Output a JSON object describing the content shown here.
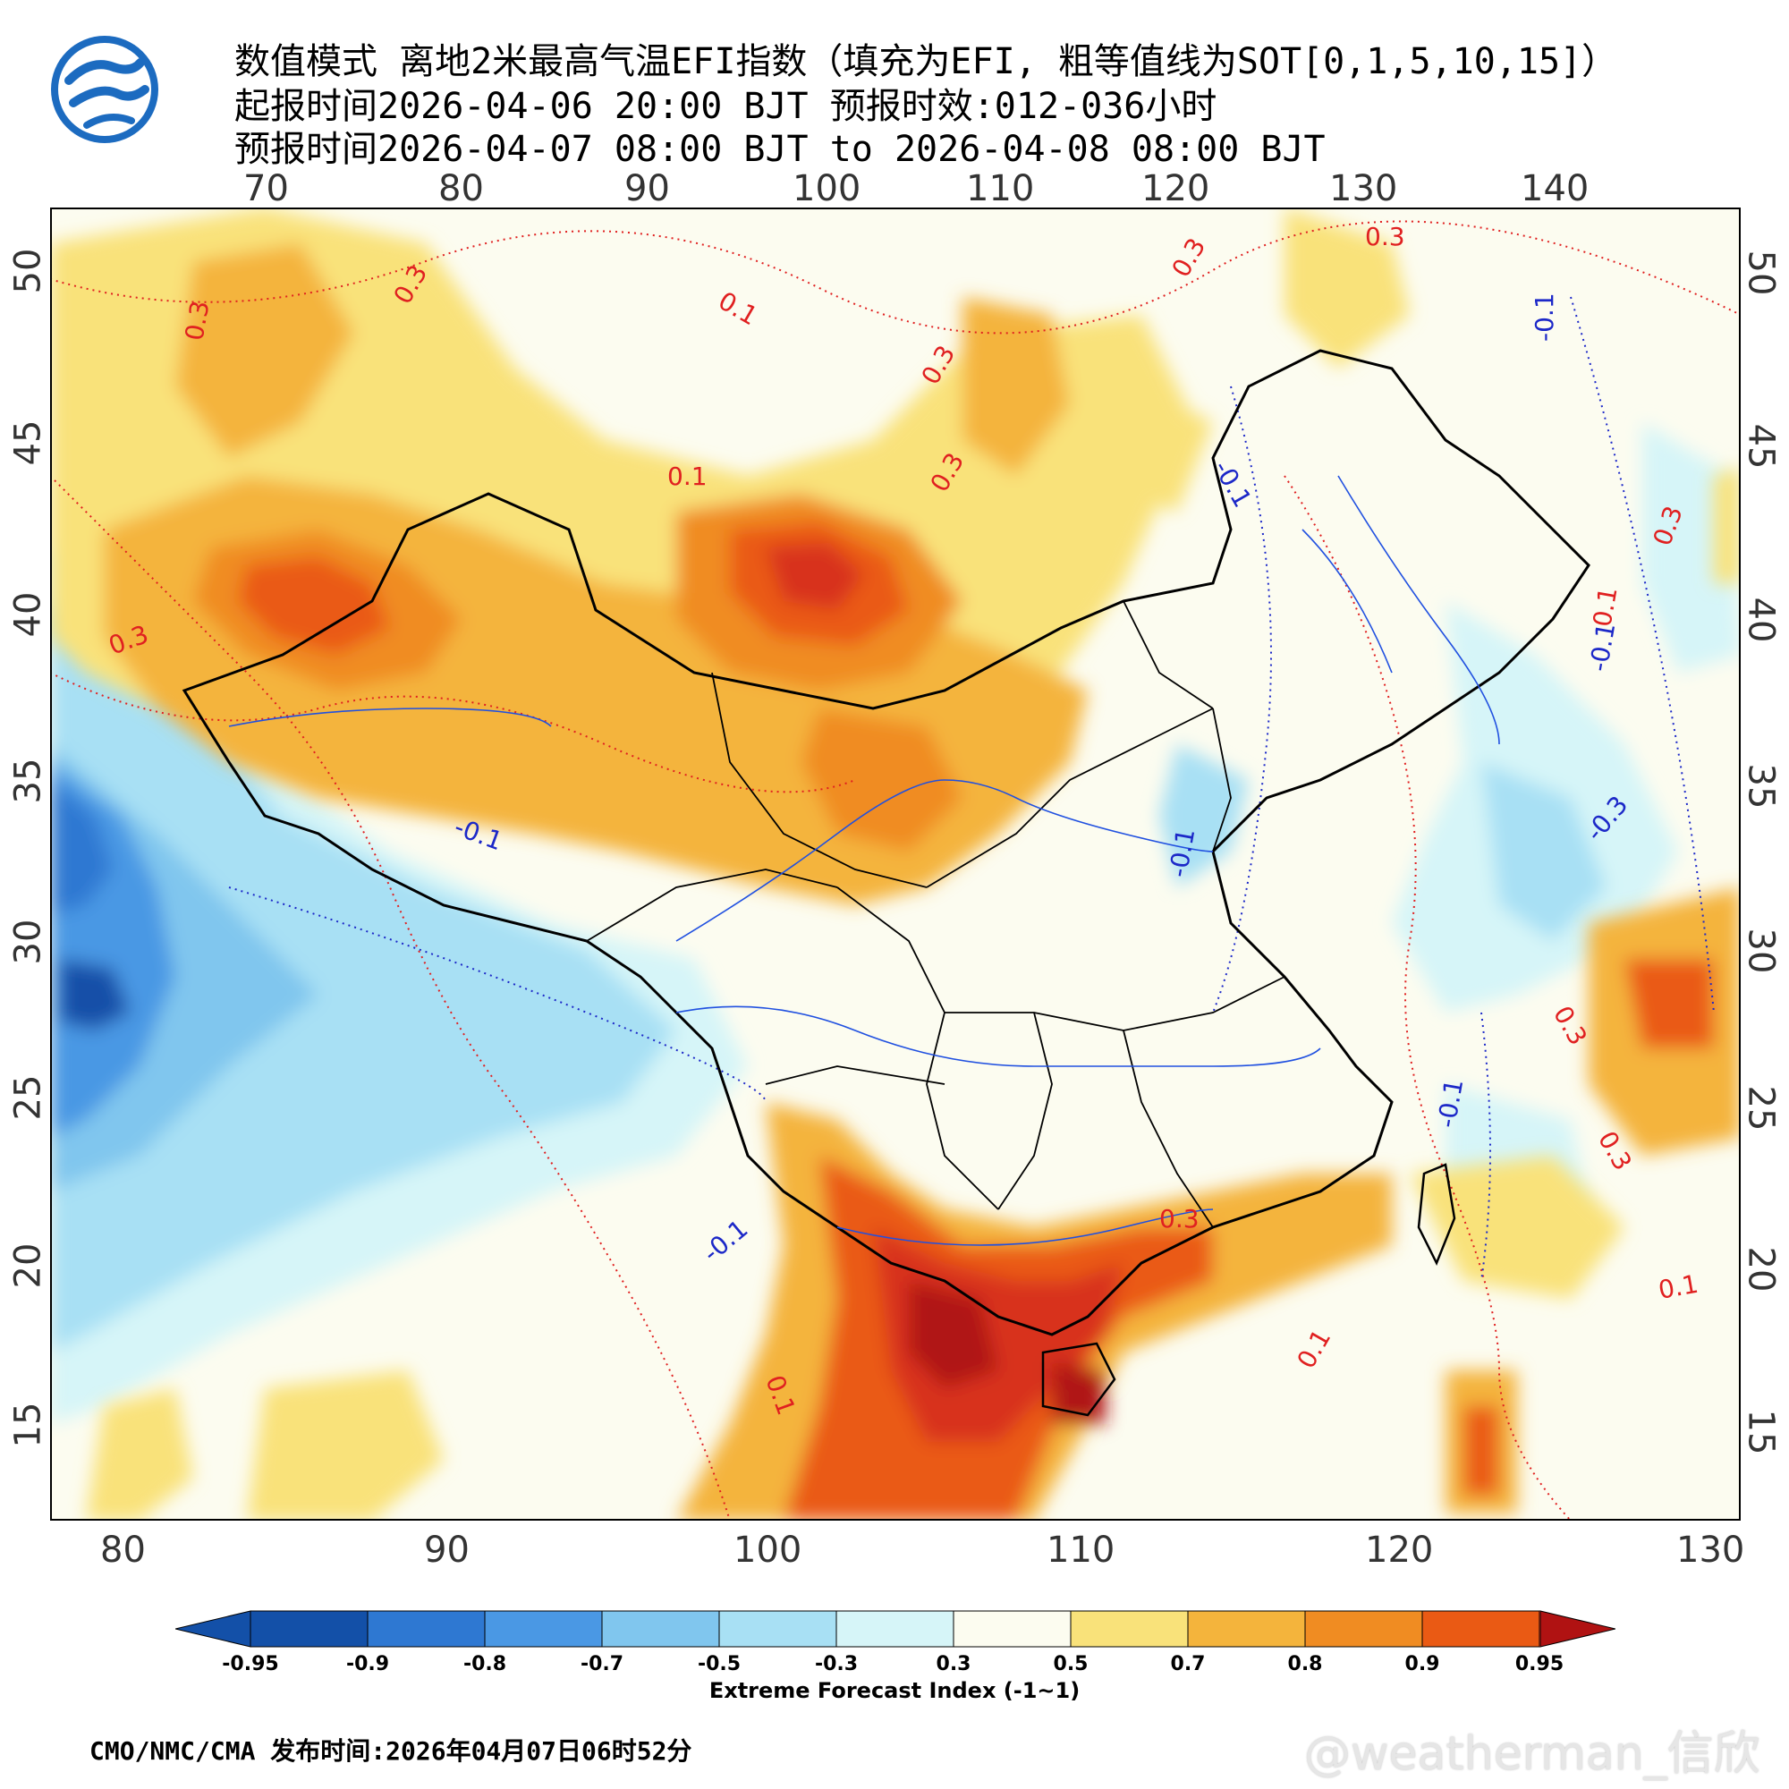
{
  "header": {
    "line1": "数值模式 离地2米最高气温EFI指数（填充为EFI, 粗等值线为SOT[0,1,5,10,15]）",
    "line2": "起报时间2026-04-06 20:00 BJT 预报时效:012-036小时",
    "line3": "预报时间2026-04-07 08:00 BJT to 2026-04-08 08:00 BJT"
  },
  "axes": {
    "top_lon": [
      "70",
      "80",
      "90",
      "100",
      "110",
      "120",
      "130",
      "140"
    ],
    "bottom_lon": [
      "80",
      "90",
      "100",
      "110",
      "120",
      "130"
    ],
    "left_lat": [
      "50",
      "45",
      "40",
      "35",
      "30",
      "25",
      "20",
      "15"
    ],
    "right_lat": [
      "50",
      "45",
      "40",
      "35",
      "30",
      "25",
      "20",
      "15"
    ]
  },
  "contour_labels": {
    "red": [
      "0.3",
      "0.3",
      "0.1",
      "0.1",
      "0.3",
      "0.3",
      "0.3",
      "0.3",
      "0.3",
      "0.1",
      "0.3",
      "0.3",
      "0.3",
      "0.1",
      "0.3",
      "0.1",
      "0.1"
    ],
    "blue": [
      "-0.1",
      "-0.1",
      "-0.1",
      "-0.1",
      "-0.1",
      "-0.3",
      "-0.1",
      "-0.1"
    ]
  },
  "legend": {
    "colors": [
      "#1350a8",
      "#2e78d2",
      "#4a98e4",
      "#80c6ee",
      "#a8e0f4",
      "#d6f5f8",
      "#fcfcf0",
      "#f9e27a",
      "#f4b43c",
      "#f08c22",
      "#ea5a14",
      "#d8301c",
      "#b01212"
    ],
    "labels": [
      "-0.95",
      "-0.9",
      "-0.8",
      "-0.7",
      "-0.5",
      "-0.3",
      "0.3",
      "0.5",
      "0.7",
      "0.8",
      "0.9",
      "0.95"
    ],
    "title": "Extreme Forecast Index (-1~1)"
  },
  "footer": {
    "text": "CMO/NMC/CMA 发布时间:2026年04月07日06时52分"
  },
  "watermark": {
    "text": "@weatherman_信欣"
  }
}
